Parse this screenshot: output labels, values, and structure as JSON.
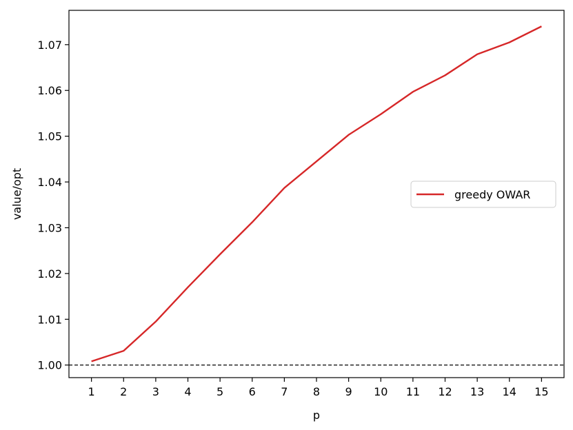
{
  "chart_data": {
    "type": "line",
    "title": "",
    "xlabel": "p",
    "ylabel": "value/opt",
    "xlim": [
      0.3,
      15.7
    ],
    "ylim": [
      0.99725,
      1.0775
    ],
    "x_ticks": [
      1,
      2,
      3,
      4,
      5,
      6,
      7,
      8,
      9,
      10,
      11,
      12,
      13,
      14,
      15
    ],
    "x_tick_labels": [
      "1",
      "2",
      "3",
      "4",
      "5",
      "6",
      "7",
      "8",
      "9",
      "10",
      "11",
      "12",
      "13",
      "14",
      "15"
    ],
    "y_ticks": [
      1.0,
      1.01,
      1.02,
      1.03,
      1.04,
      1.05,
      1.06,
      1.07
    ],
    "y_tick_labels": [
      "1.00",
      "1.01",
      "1.02",
      "1.03",
      "1.04",
      "1.05",
      "1.06",
      "1.07"
    ],
    "grid": false,
    "legend_position": "center-right",
    "series": [
      {
        "name": "greedy OWAR",
        "color": "#d62728",
        "x": [
          1,
          2,
          3,
          4,
          5,
          6,
          7,
          8,
          9,
          10,
          11,
          12,
          13,
          14,
          15
        ],
        "values": [
          1.0008,
          1.0031,
          1.0095,
          1.017,
          1.0242,
          1.0312,
          1.0387,
          1.0445,
          1.0503,
          1.0548,
          1.0597,
          1.0633,
          1.0679,
          1.0705,
          1.074
        ]
      }
    ],
    "reference_lines": [
      {
        "orientation": "horizontal",
        "y": 1.0,
        "style": "dashed",
        "color": "#000000"
      }
    ]
  }
}
